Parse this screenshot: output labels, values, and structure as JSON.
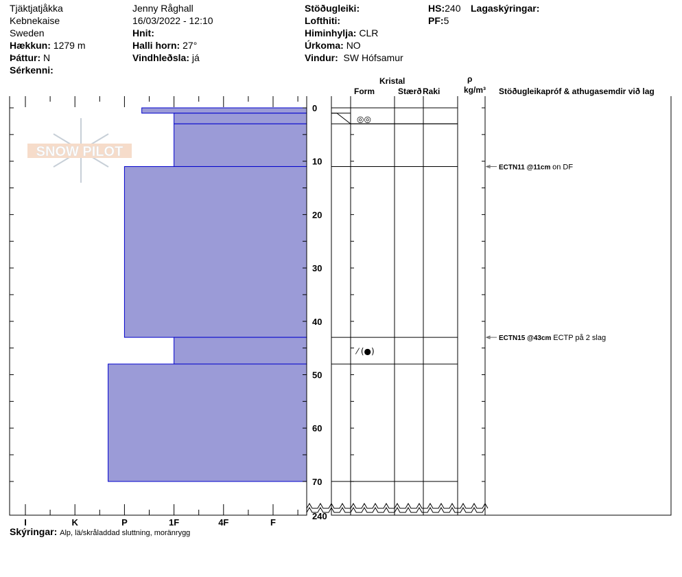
{
  "header": {
    "col1": [
      "Tjäktjatjåkka",
      "Kebnekaise",
      "Sweden"
    ],
    "elevation": {
      "label": "Hækkun:",
      "value": "1279 m"
    },
    "aspect": {
      "label": "Þáttur:",
      "value": "N"
    },
    "features": {
      "label": "Sérkenni:",
      "value": ""
    },
    "observer": "Jenny Råghall",
    "datetime": "16/03/2022 - 12:10",
    "coords": {
      "label": "Hnit:",
      "value": ""
    },
    "slope": {
      "label": "Halli horn:",
      "value": "27°"
    },
    "wind_loading": {
      "label": "Vindhleðsla:",
      "value": "já"
    },
    "stability": {
      "label": "Stöðugleiki:",
      "value": ""
    },
    "air_temp": {
      "label": "Lofthiti:",
      "value": ""
    },
    "sky": {
      "label": "Himinhylja:",
      "value": "CLR"
    },
    "precip": {
      "label": "Úrkoma:",
      "value": "NO"
    },
    "wind": {
      "label": "Vindur:",
      "value": "SW Hófsamur"
    },
    "hs": {
      "label": "HS:",
      "value": "240"
    },
    "pf": {
      "label": "PF:",
      "value": "5"
    },
    "layer_notes": {
      "label": "Lagaskýringar:",
      "value": ""
    }
  },
  "table_header": {
    "crystal": "Kristal",
    "form": "Form",
    "size": "Stærð",
    "moisture": "Raki",
    "rho": "ρ",
    "density_unit": "kg/m³",
    "tests": "Stöðugleikapróf & athugasemdir við lag"
  },
  "hardness_axis": [
    "I",
    "K",
    "P",
    "1F",
    "4F",
    "F"
  ],
  "depth_ticks": [
    "0",
    "10",
    "20",
    "30",
    "40",
    "50",
    "60",
    "70"
  ],
  "total_depth_label": "240",
  "layers": [
    {
      "top": 0,
      "bottom": 1,
      "hardness": 2.35,
      "form": ""
    },
    {
      "top": 1,
      "bottom": 3,
      "hardness": 3,
      "form": "◎◎"
    },
    {
      "top": 3,
      "bottom": 11,
      "hardness": 3,
      "form": ""
    },
    {
      "top": 11,
      "bottom": 43,
      "hardness": 2,
      "form": ""
    },
    {
      "top": 43,
      "bottom": 48,
      "hardness": 3,
      "form": "⁄ (●)"
    },
    {
      "top": 48,
      "bottom": 70,
      "hardness": 1.67,
      "form": ""
    }
  ],
  "tests": [
    {
      "depth": 11,
      "code": "ECTN11 @11cm",
      "comment": "on DF"
    },
    {
      "depth": 43,
      "code": "ECTN15 @43cm",
      "comment": "ECTP på 2 slag"
    }
  ],
  "footer": {
    "label": "Skýringar:",
    "value": "Alp, lä/skråladdad sluttning, moränrygg"
  },
  "logo": "SNOW PILOT",
  "colors": {
    "layer_fill": "#9b9bd7",
    "layer_stroke": "#0000cc"
  }
}
